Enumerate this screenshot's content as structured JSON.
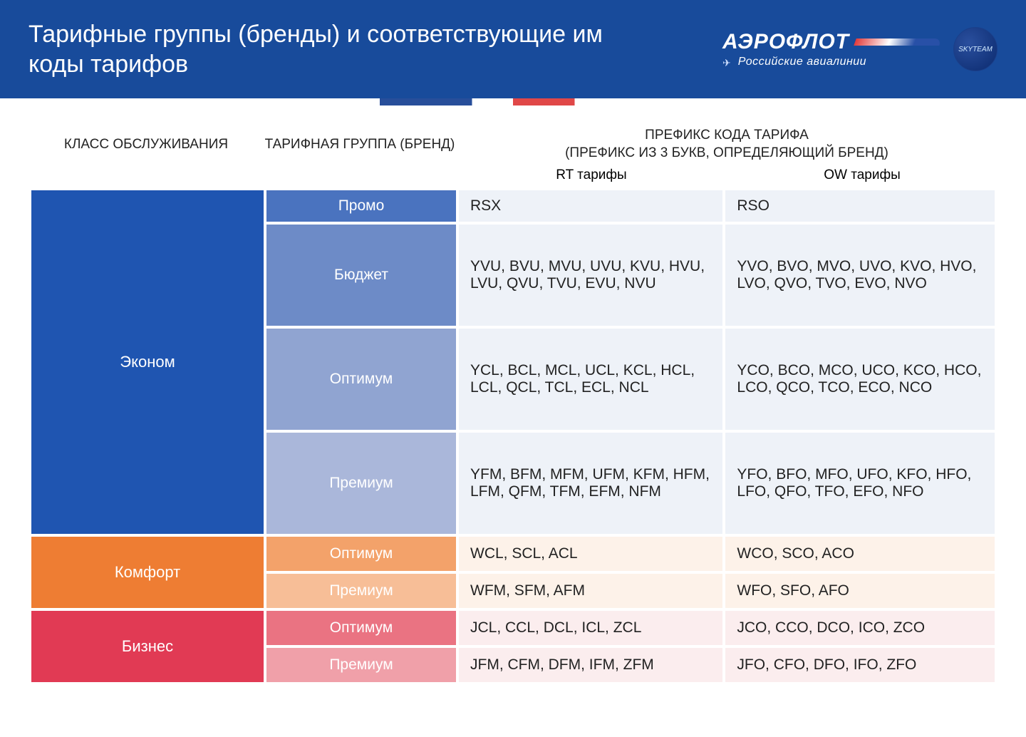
{
  "header": {
    "title": "Тарифные группы (бренды) и соответствующие им коды тарифов",
    "brand": "АЭРОФЛОТ",
    "tagline": "Российские авиалинии",
    "alliance_badge": "SKYTEAM"
  },
  "colors": {
    "header_band": "#184b9b",
    "econom_class": "#1f55b1",
    "econom_brand_promo": "#4a73bf",
    "econom_brand_budget": "#6d8bc7",
    "econom_brand_optimum": "#90a4d1",
    "econom_brand_premium": "#aab7da",
    "econom_code_bg": "#eef2f8",
    "comfort_class": "#ee7d33",
    "comfort_brand_optimum": "#f3a26a",
    "comfort_brand_premium": "#f7be97",
    "comfort_code_bg": "#fdf2e9",
    "business_class": "#e13a54",
    "business_brand_optimum": "#ea7382",
    "business_brand_premium": "#f0a0a9",
    "business_code_bg": "#fbedee",
    "text_dark": "#1b1b1b"
  },
  "table": {
    "headers": {
      "class": "КЛАСС ОБСЛУЖИВАНИЯ",
      "brand": "ТАРИФНАЯ ГРУППА (БРЕНД)",
      "prefix_title": "ПРЕФИКС КОДА ТАРИФА",
      "prefix_sub": "(ПРЕФИКС ИЗ 3 БУКВ, ОПРЕДЕЛЯЮЩИЙ БРЕНД)",
      "rt": "RT тарифы",
      "ow": "OW тарифы"
    },
    "classes": [
      {
        "name": "Эконом",
        "class_color_key": "econom_class",
        "code_bg_key": "econom_code_bg",
        "brands": [
          {
            "name": "Промо",
            "brand_color_key": "econom_brand_promo",
            "row_h": "h-promo",
            "rt": "RSX",
            "ow": "RSO"
          },
          {
            "name": "Бюджет",
            "brand_color_key": "econom_brand_budget",
            "row_h": "h-tall",
            "rt": "YVU, BVU, MVU, UVU, KVU, HVU, LVU, QVU, TVU, EVU, NVU",
            "ow": "YVO, BVO, MVO, UVO, KVO, HVO, LVO, QVO, TVO, EVO, NVO"
          },
          {
            "name": "Оптимум",
            "brand_color_key": "econom_brand_optimum",
            "row_h": "h-tall",
            "rt": "YCL, BCL, MCL, UCL, KCL, HCL, LCL, QCL, TCL, ECL, NCL",
            "ow": "YCO, BCO, MCO, UCO, KCO, HCO, LCO, QCO, TCO, ECO, NCO"
          },
          {
            "name": "Премиум",
            "brand_color_key": "econom_brand_premium",
            "row_h": "h-tall",
            "rt": "YFM, BFM, MFM, UFM, KFM, HFM, LFM, QFM, TFM, EFM, NFM",
            "ow": "YFO, BFO, MFO, UFO, KFO, HFO, LFO, QFO, TFO, EFO, NFO"
          }
        ]
      },
      {
        "name": "Комфорт",
        "class_color_key": "comfort_class",
        "code_bg_key": "comfort_code_bg",
        "brands": [
          {
            "name": "Оптимум",
            "brand_color_key": "comfort_brand_optimum",
            "row_h": "h-short",
            "rt": "WCL, SCL, ACL",
            "ow": "WCO, SCO, ACO"
          },
          {
            "name": "Премиум",
            "brand_color_key": "comfort_brand_premium",
            "row_h": "h-short",
            "rt": "WFM, SFM, AFM",
            "ow": "WFO, SFO, AFO"
          }
        ]
      },
      {
        "name": "Бизнес",
        "class_color_key": "business_class",
        "code_bg_key": "business_code_bg",
        "brands": [
          {
            "name": "Оптимум",
            "brand_color_key": "business_brand_optimum",
            "row_h": "h-short",
            "rt": "JCL, CCL, DCL, ICL, ZCL",
            "ow": "JCO, CCO, DCO, ICO, ZCO"
          },
          {
            "name": "Премиум",
            "brand_color_key": "business_brand_premium",
            "row_h": "h-short",
            "rt": "JFM, CFM, DFM, IFM, ZFM",
            "ow": "JFO, CFO, DFO, IFO, ZFO"
          }
        ]
      }
    ]
  }
}
